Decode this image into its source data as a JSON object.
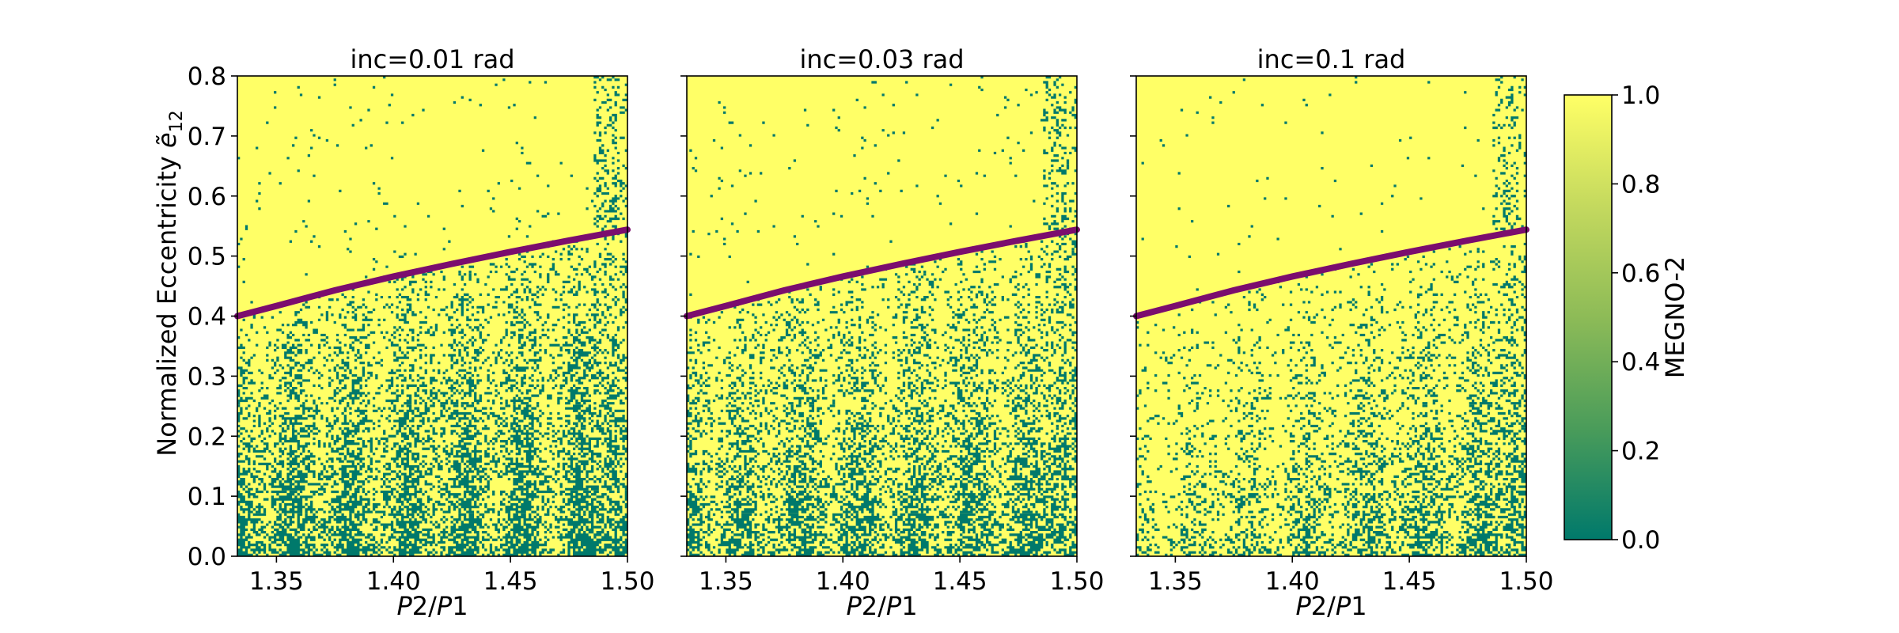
{
  "chart_data": {
    "type": "heatmap",
    "panels": [
      {
        "title": "inc=0.01 rad",
        "chaos_level": 1.0
      },
      {
        "title": "inc=0.03 rad",
        "chaos_level": 0.85
      },
      {
        "title": "inc=0.1 rad",
        "chaos_level": 0.5
      }
    ],
    "xlabel_italic_a": "P",
    "xlabel_mid": "2/",
    "xlabel_italic_b": "P",
    "xlabel_end": "1",
    "ylabel_main": "Normalized Eccentricity ",
    "ylabel_symbol": "ẽ",
    "ylabel_subscript": "12",
    "xlim": [
      1.3333,
      1.5
    ],
    "ylim": [
      0.0,
      0.8
    ],
    "x_ticks": [
      "1.35",
      "1.40",
      "1.45",
      "1.50"
    ],
    "x_tick_values": [
      1.35,
      1.4,
      1.45,
      1.5
    ],
    "y_ticks": [
      "0.0",
      "0.1",
      "0.2",
      "0.3",
      "0.4",
      "0.5",
      "0.6",
      "0.7",
      "0.8"
    ],
    "y_tick_values": [
      0.0,
      0.1,
      0.2,
      0.3,
      0.4,
      0.5,
      0.6,
      0.7,
      0.8
    ],
    "curve": {
      "color": "#7b0d6e",
      "x": [
        1.3333,
        1.35,
        1.375,
        1.4,
        1.425,
        1.45,
        1.475,
        1.5
      ],
      "y": [
        0.4,
        0.417,
        0.443,
        0.466,
        0.487,
        0.507,
        0.526,
        0.544
      ]
    },
    "colorbar": {
      "label": "MEGNO-2",
      "ticks": [
        "0.0",
        "0.2",
        "0.4",
        "0.6",
        "0.8",
        "1.0"
      ],
      "tick_values": [
        0.0,
        0.2,
        0.4,
        0.6,
        0.8,
        1.0
      ],
      "range": [
        0.0,
        1.0
      ],
      "colors": [
        "#00796b",
        "#4a9c5a",
        "#8dbb57",
        "#c4d95e",
        "#ffff66"
      ]
    },
    "colors": {
      "chaotic": "#ffff66",
      "regular": "#00796b"
    },
    "grid": false
  }
}
